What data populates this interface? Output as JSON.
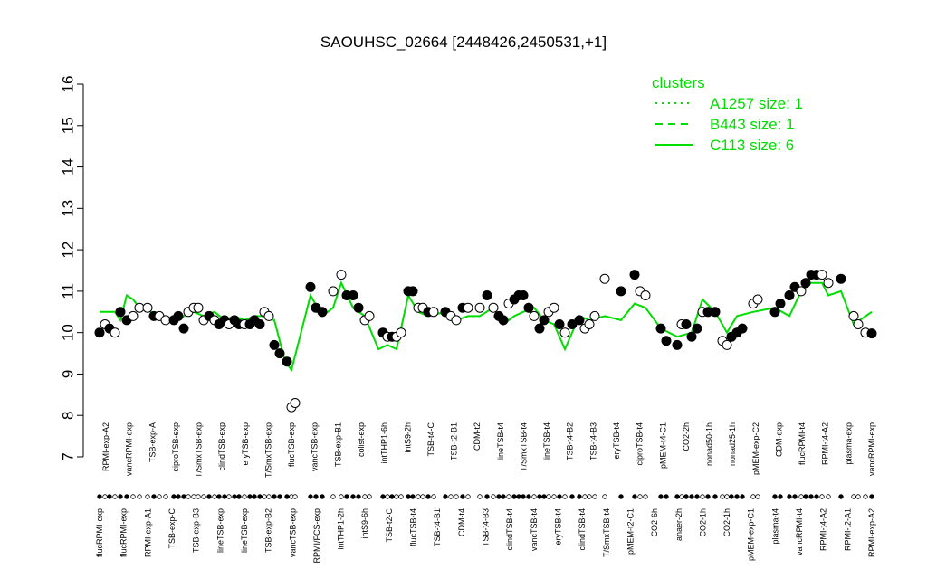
{
  "chart_data": {
    "type": "line",
    "title": "SAOUHSC_02664 [2448426,2450531,+1]",
    "ylim": [
      7,
      16
    ],
    "yticks": [
      7,
      8,
      9,
      10,
      11,
      12,
      13,
      14,
      15,
      16
    ],
    "grid": false,
    "legend_position": "top-right",
    "legend": {
      "title": "clusters",
      "items": [
        {
          "label": "A1257 size: 1",
          "style": "dotted"
        },
        {
          "label": "B443 size: 1",
          "style": "dashed"
        },
        {
          "label": "C113 size: 6",
          "style": "solid"
        }
      ]
    },
    "xlabels_top": [
      "RPMI-exp-A2",
      "vancRPMI-exp",
      "TSB-exp-A",
      "ciproTSB-exp",
      "T/SmxTSB-exp",
      "clindTSB-exp",
      "eryTSB-exp",
      "T/SmxTSB-exp",
      "flucTSB-exp",
      "vancTSB-exp",
      "TSB-exp-B1",
      "colist-exp",
      "intTHP1-6h",
      "intS9-2h",
      "TSB-t4-C",
      "TSB-t2-B1",
      "CDM-t2",
      "lineTSB-t4",
      "T/SmxTSB-t4",
      "lineTSB-t4",
      "TSB-t4-B2",
      "TSB-t4-B3",
      "eryTSB-t4",
      "ciproTSB-t4",
      "pMEM-t4-C1",
      "CO2-2h",
      "nonad50-1h",
      "nonad25-1h",
      "pMEM-exp-C2",
      "CDM-exp",
      "flucRPMI-t4",
      "RPMI-t4-A2",
      "plasma-exp",
      "vancRPMI-exp"
    ],
    "xlabels_bottom": [
      "flucRPMI-exp",
      "flucRPMI-exp",
      "RPMI-exp-A1",
      "TSB-exp-C",
      "TSB-exp-B3",
      "lineTSB-exp",
      "lineTSB-exp",
      "TSB-exp-B2",
      "vancTSB-exp",
      "RPMI/FCS-exp",
      "intTHP1-2h",
      "intS9-6h",
      "TSB-t2-C",
      "flucTSB-t4",
      "TSB-t4-B1",
      "CDM-t4",
      "TSB-t4-B3",
      "clindTSB-t4",
      "vancTSB-t4",
      "eryTSB-t4",
      "clindTSB-t4",
      "T/SmxTSB-t4",
      "pMEM-t2-C1",
      "CO2-6h",
      "anaer-2h",
      "CO2-1h",
      "CO2-1h",
      "pMEM-exp-C1",
      "plasma-t4",
      "vancRPMI-t4",
      "RPMI-t4-A2",
      "RPMI-t2-A1",
      "RPMI-exp-A2"
    ],
    "samples_x": [
      110,
      116,
      121,
      127,
      133,
      140,
      147,
      154,
      163,
      170,
      176,
      183,
      192,
      197,
      203,
      208,
      214,
      219,
      225,
      231,
      237,
      242,
      248,
      253,
      259,
      264,
      270,
      276,
      281,
      287,
      292,
      297,
      303,
      309,
      317,
      322,
      326,
      343,
      349,
      356,
      368,
      377,
      383,
      390,
      396,
      403,
      408,
      423,
      428,
      433,
      438,
      443,
      451,
      456,
      462,
      467,
      473,
      479,
      492,
      498,
      504,
      511,
      517,
      530,
      538,
      545,
      551,
      556,
      562,
      568,
      573,
      578,
      584,
      590,
      596,
      601,
      606,
      612,
      618,
      624,
      632,
      640,
      646,
      651,
      657,
      668,
      686,
      701,
      707,
      713,
      730,
      736,
      748,
      753,
      758,
      764,
      770,
      776,
      782,
      790,
      798,
      803,
      808,
      814,
      820,
      832,
      837,
      856,
      862,
      872,
      878,
      885,
      890,
      896,
      902,
      908,
      915,
      929,
      943,
      948,
      956,
      963
    ],
    "samples_y": [
      10.0,
      10.2,
      10.1,
      10.0,
      10.5,
      10.3,
      10.4,
      10.6,
      10.6,
      10.4,
      10.4,
      10.3,
      10.3,
      10.4,
      10.1,
      10.5,
      10.6,
      10.6,
      10.3,
      10.4,
      10.3,
      10.2,
      10.3,
      10.2,
      10.3,
      10.2,
      10.2,
      10.2,
      10.3,
      10.2,
      10.5,
      10.4,
      9.7,
      9.5,
      9.3,
      8.2,
      8.3,
      11.1,
      10.6,
      10.5,
      11.0,
      11.4,
      10.9,
      10.9,
      10.6,
      10.3,
      10.4,
      10.0,
      9.9,
      9.9,
      9.9,
      10.0,
      11.0,
      11.0,
      10.6,
      10.6,
      10.5,
      10.5,
      10.5,
      10.4,
      10.3,
      10.6,
      10.6,
      10.6,
      10.9,
      10.6,
      10.4,
      10.3,
      10.7,
      10.8,
      10.9,
      10.9,
      10.6,
      10.4,
      10.1,
      10.3,
      10.5,
      10.6,
      10.2,
      10.0,
      10.2,
      10.3,
      10.1,
      10.2,
      10.4,
      11.3,
      11.0,
      11.4,
      11.0,
      10.9,
      10.1,
      9.8,
      9.7,
      10.2,
      10.2,
      9.9,
      10.1,
      10.5,
      10.5,
      10.5,
      9.8,
      9.7,
      9.9,
      10.0,
      10.1,
      10.7,
      10.8,
      10.5,
      10.7,
      10.9,
      11.1,
      11.0,
      11.2,
      11.4,
      11.4,
      11.4,
      11.2,
      11.3,
      10.4,
      10.2,
      10.0,
      9.98
    ],
    "samples_filled": [
      1,
      0,
      1,
      0,
      1,
      1,
      0,
      0,
      0,
      1,
      0,
      0,
      1,
      1,
      1,
      0,
      0,
      0,
      0,
      1,
      0,
      1,
      1,
      0,
      1,
      1,
      0,
      1,
      1,
      1,
      0,
      0,
      1,
      1,
      1,
      0,
      0,
      1,
      1,
      1,
      0,
      0,
      1,
      1,
      1,
      0,
      0,
      1,
      0,
      1,
      0,
      0,
      1,
      1,
      0,
      0,
      1,
      0,
      1,
      0,
      0,
      1,
      0,
      0,
      1,
      0,
      1,
      1,
      0,
      1,
      1,
      1,
      1,
      0,
      1,
      1,
      0,
      0,
      1,
      0,
      1,
      1,
      0,
      0,
      0,
      0,
      1,
      1,
      0,
      0,
      1,
      1,
      1,
      0,
      1,
      1,
      1,
      0,
      1,
      1,
      0,
      0,
      1,
      1,
      1,
      0,
      0,
      1,
      1,
      1,
      1,
      0,
      1,
      1,
      1,
      0,
      0,
      1,
      0,
      0,
      0,
      1
    ],
    "series": [
      {
        "name": "C113 size: 6",
        "style": "solid",
        "color": "#00dd00",
        "x": [
          110,
          127,
          133,
          140,
          147,
          154,
          163,
          170,
          176,
          183,
          192,
          203,
          214,
          225,
          237,
          248,
          259,
          270,
          281,
          292,
          303,
          315,
          322,
          343,
          356,
          368,
          377,
          390,
          403,
          418,
          428,
          438,
          451,
          462,
          473,
          492,
          504,
          517,
          530,
          545,
          556,
          568,
          578,
          590,
          601,
          612,
          624,
          640,
          651,
          668,
          686,
          701,
          713,
          730,
          748,
          764,
          776,
          790,
          803,
          814,
          832,
          856,
          872,
          885,
          896,
          908,
          915,
          929,
          943,
          963
        ],
        "y": [
          10.5,
          10.5,
          10.3,
          10.9,
          10.8,
          10.6,
          10.6,
          10.4,
          10.3,
          10.4,
          10.3,
          10.4,
          10.5,
          10.4,
          10.5,
          10.3,
          10.4,
          10.3,
          10.4,
          10.4,
          10.3,
          9.3,
          9.1,
          10.9,
          10.4,
          10.6,
          11.2,
          10.6,
          10.4,
          9.6,
          9.7,
          9.6,
          10.9,
          10.5,
          10.4,
          10.5,
          10.3,
          10.4,
          10.4,
          10.6,
          10.2,
          10.4,
          10.5,
          10.6,
          10.3,
          10.2,
          9.6,
          10.4,
          10.3,
          10.4,
          10.3,
          10.7,
          10.6,
          10.1,
          9.9,
          10.0,
          10.8,
          10.5,
          10.0,
          10.4,
          10.5,
          10.6,
          10.4,
          11.0,
          11.2,
          11.2,
          10.9,
          11.0,
          10.2,
          10.5
        ]
      }
    ]
  }
}
